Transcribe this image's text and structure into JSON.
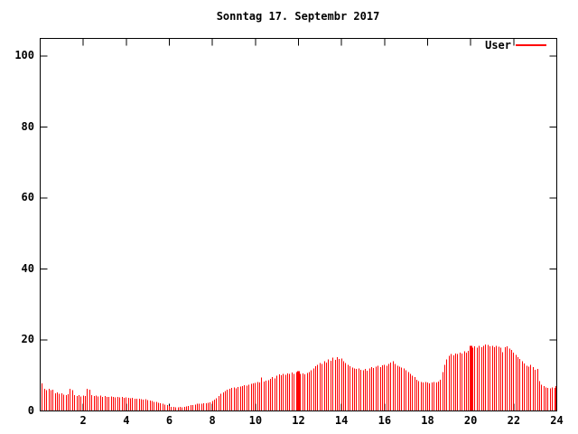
{
  "chart_data": {
    "type": "bar",
    "style": "gnuplot-impulses",
    "title": "Sonntag 17. Septembr 2017",
    "xlabel": "",
    "ylabel": "",
    "xlim": [
      0,
      24
    ],
    "ylim": [
      0,
      105
    ],
    "x_ticks": [
      2,
      4,
      6,
      8,
      10,
      12,
      14,
      16,
      18,
      20,
      22,
      24
    ],
    "y_ticks": [
      0,
      20,
      40,
      60,
      80,
      100
    ],
    "grid": false,
    "legend_position": "top-right-inside",
    "background": "#ffffff",
    "axis_color": "#000000",
    "text_color": "#000000",
    "series": [
      {
        "name": "User",
        "color": "#ff0000",
        "x_unit": "hour",
        "x_start": 0.1,
        "x_step": 0.1,
        "wide_indices": [
          119,
          199
        ],
        "values": [
          7.8,
          6.2,
          5.8,
          6.2,
          5.8,
          6.0,
          5.0,
          5.2,
          4.8,
          5.0,
          4.6,
          4.4,
          4.7,
          6.3,
          5.8,
          4.4,
          4.2,
          4.5,
          4.1,
          4.3,
          4.2,
          6.2,
          6.0,
          4.4,
          4.2,
          4.3,
          4.1,
          4.3,
          4.0,
          4.2,
          4.0,
          3.9,
          4.1,
          3.9,
          3.8,
          4.0,
          3.8,
          3.9,
          3.7,
          3.8,
          3.7,
          3.6,
          3.7,
          3.5,
          3.4,
          3.5,
          3.3,
          3.2,
          3.3,
          3.1,
          2.9,
          2.8,
          2.6,
          2.5,
          2.3,
          2.2,
          2.0,
          1.8,
          1.6,
          1.4,
          1.2,
          1.1,
          1.0,
          1.0,
          1.1,
          1.0,
          1.2,
          1.3,
          1.4,
          1.6,
          1.7,
          1.8,
          2.0,
          2.0,
          2.1,
          2.2,
          2.2,
          2.3,
          2.4,
          2.8,
          3.2,
          3.6,
          4.2,
          4.8,
          5.2,
          5.6,
          6.0,
          6.3,
          6.5,
          6.6,
          6.4,
          6.7,
          6.9,
          7.0,
          7.2,
          7.1,
          7.4,
          7.6,
          7.8,
          7.9,
          8.1,
          8.0,
          9.4,
          8.3,
          8.5,
          8.7,
          9.0,
          9.5,
          9.2,
          10.0,
          10.3,
          10.1,
          10.5,
          10.2,
          10.6,
          10.4,
          10.8,
          10.5,
          10.9,
          11.2,
          10.4,
          10.6,
          10.3,
          10.7,
          11.0,
          11.5,
          12.0,
          12.6,
          13.0,
          13.5,
          13.2,
          14.0,
          13.6,
          14.5,
          14.2,
          15.0,
          14.4,
          15.2,
          14.6,
          14.8,
          14.0,
          13.5,
          13.0,
          12.6,
          12.2,
          12.0,
          11.8,
          12.0,
          11.6,
          11.5,
          11.8,
          11.4,
          12.0,
          12.3,
          12.1,
          12.5,
          12.8,
          12.4,
          12.9,
          13.0,
          12.7,
          13.2,
          13.6,
          14.0,
          13.3,
          12.8,
          12.5,
          12.2,
          12.0,
          11.5,
          11.0,
          10.5,
          10.0,
          9.5,
          8.8,
          8.4,
          8.2,
          8.0,
          8.2,
          8.0,
          7.8,
          8.0,
          8.2,
          8.0,
          8.3,
          8.8,
          11.0,
          13.0,
          14.5,
          15.5,
          16.0,
          15.7,
          16.2,
          16.0,
          16.5,
          16.2,
          16.8,
          16.5,
          17.0,
          18.4,
          17.8,
          18.2,
          17.9,
          18.3,
          18.0,
          18.4,
          18.7,
          18.6,
          18.2,
          18.3,
          18.0,
          18.4,
          18.1,
          17.8,
          16.6,
          18.0,
          18.2,
          17.6,
          17.2,
          16.5,
          15.8,
          15.2,
          14.6,
          14.0,
          13.4,
          12.8,
          12.5,
          13.0,
          12.4,
          11.6,
          11.9,
          8.4,
          7.4,
          7.0,
          6.6,
          6.5,
          6.4,
          6.6,
          6.5,
          7.0
        ]
      }
    ]
  }
}
